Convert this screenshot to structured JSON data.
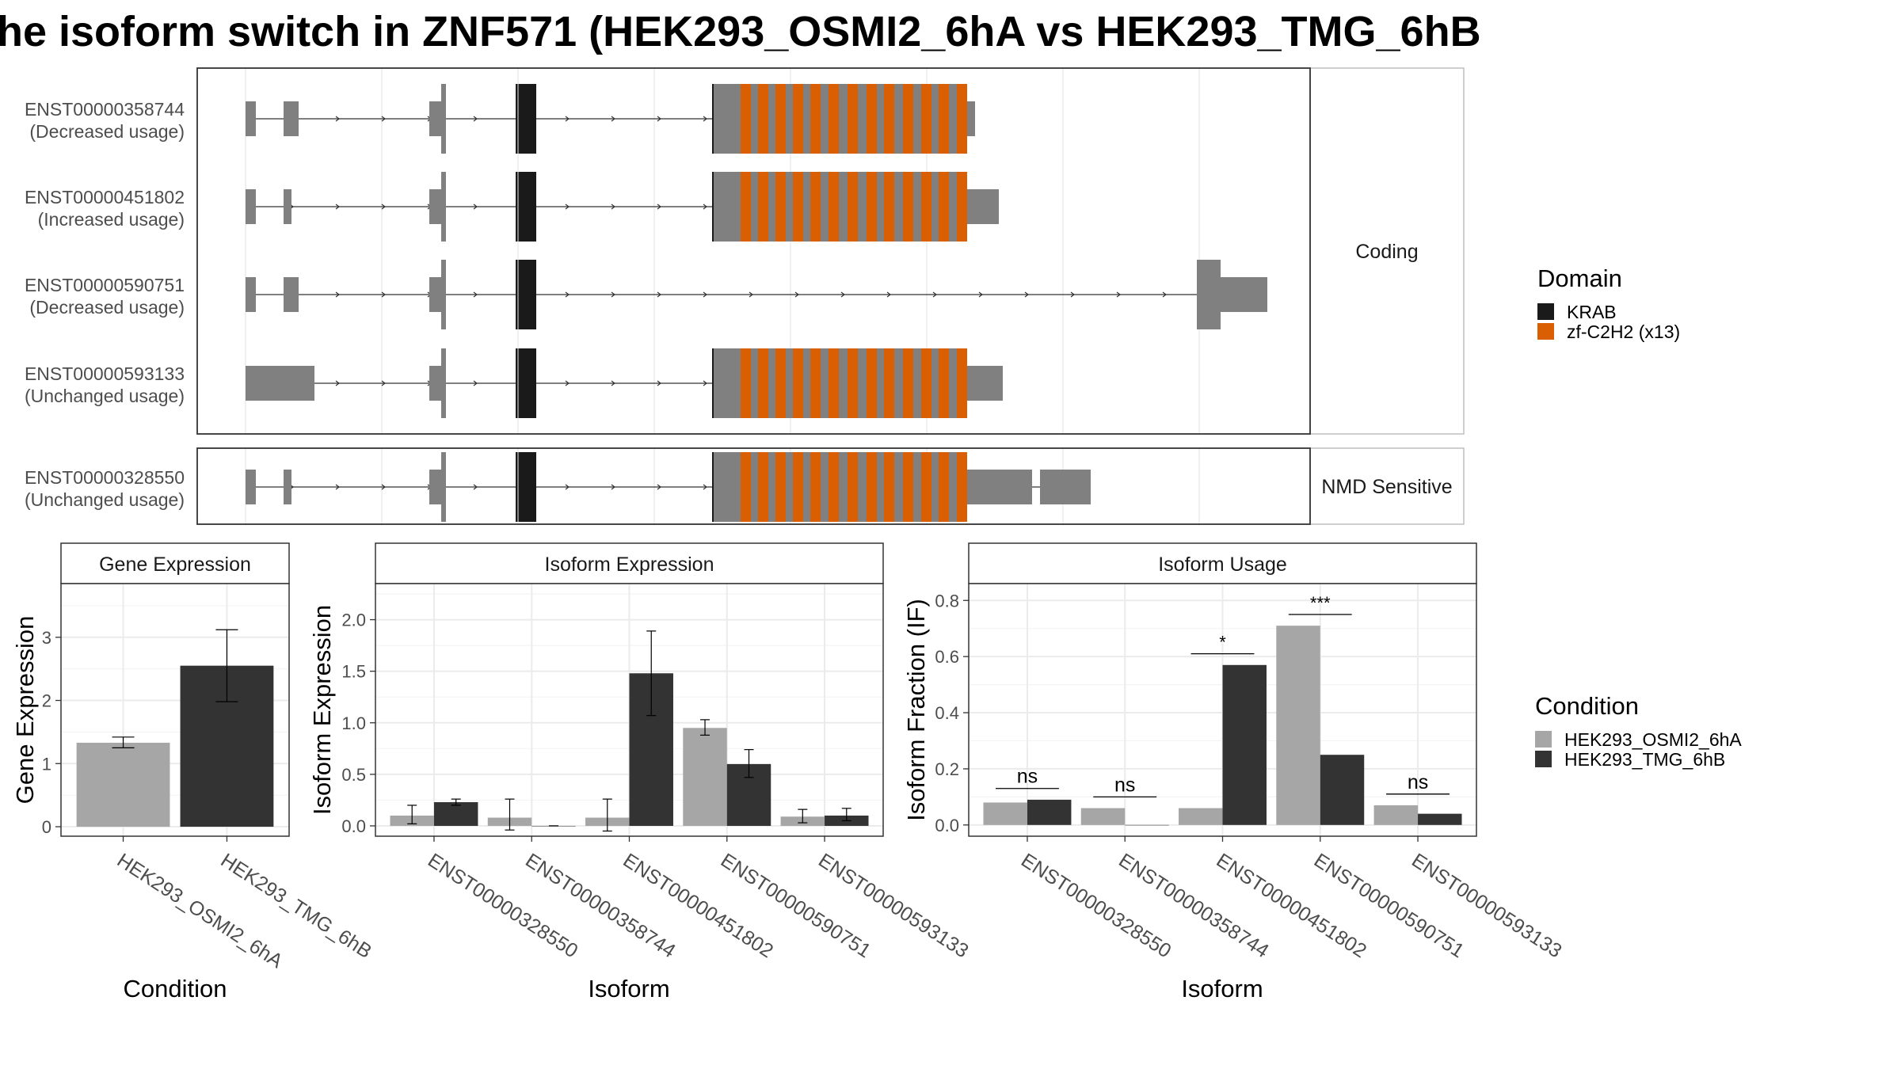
{
  "title": "he isoform switch in ZNF571 (HEK293_OSMI2_6hA vs HEK293_TMG_6hB",
  "colors": {
    "exon": "#808080",
    "krab": "#1a1a1a",
    "zf": "#d95f02",
    "condition_a": "#a6a6a6",
    "condition_b": "#333333",
    "panel_border": "#333333",
    "strip_border": "#bfbfbf",
    "grid": "#ebebeb"
  },
  "transcript_panel": {
    "facets": [
      "Coding",
      "NMD Sensitive"
    ],
    "transcripts": [
      {
        "id": "ENST00000358744",
        "usage": "(Decreased usage)",
        "facet": 0
      },
      {
        "id": "ENST00000451802",
        "usage": "(Increased usage)",
        "facet": 0
      },
      {
        "id": "ENST00000590751",
        "usage": "(Decreased usage)",
        "facet": 0
      },
      {
        "id": "ENST00000593133",
        "usage": "(Unchanged usage)",
        "facet": 0
      },
      {
        "id": "ENST00000328550",
        "usage": "(Unchanged usage)",
        "facet": 1
      }
    ]
  },
  "domain_legend": {
    "title": "Domain",
    "items": [
      {
        "label": "KRAB",
        "color": "#1a1a1a"
      },
      {
        "label": "zf-C2H2 (x13)",
        "color": "#d95f02"
      }
    ]
  },
  "condition_legend": {
    "title": "Condition",
    "items": [
      {
        "label": "HEK293_OSMI2_6hA",
        "color": "#a6a6a6"
      },
      {
        "label": "HEK293_TMG_6hB",
        "color": "#333333"
      }
    ]
  },
  "chart_data": [
    {
      "type": "bar",
      "title": "Gene Expression",
      "xlabel": "Condition",
      "ylabel": "Gene Expression",
      "categories": [
        "HEK293_OSMI2_6hA",
        "HEK293_TMG_6hB"
      ],
      "values": [
        1.33,
        2.55
      ],
      "error_low": [
        1.25,
        1.98
      ],
      "error_high": [
        1.42,
        3.12
      ],
      "ylim": [
        -0.15,
        3.85
      ],
      "yticks": [
        0,
        1,
        2,
        3
      ],
      "grid": true
    },
    {
      "type": "bar",
      "title": "Isoform Expression",
      "xlabel": "Isoform",
      "ylabel": "Isoform Expression",
      "categories": [
        "ENST00000328550",
        "ENST00000358744",
        "ENST00000451802",
        "ENST00000590751",
        "ENST00000593133"
      ],
      "series": [
        {
          "values": [
            0.1,
            0.08,
            0.08,
            0.95,
            0.09
          ],
          "error_low": [
            0.02,
            -0.04,
            -0.05,
            0.88,
            0.03
          ],
          "error_high": [
            0.2,
            0.26,
            0.26,
            1.03,
            0.16
          ]
        },
        {
          "values": [
            0.23,
            0.0,
            1.48,
            0.6,
            0.1
          ],
          "error_low": [
            0.2,
            0.0,
            1.07,
            0.47,
            0.05
          ],
          "error_high": [
            0.26,
            0.0,
            1.89,
            0.74,
            0.17
          ]
        }
      ],
      "ylim": [
        -0.1,
        2.35
      ],
      "yticks": [
        0.0,
        0.5,
        1.0,
        1.5,
        2.0
      ],
      "yticklabels": [
        "0.0",
        "0.5",
        "1.0",
        "1.5",
        "2.0"
      ],
      "grid": true
    },
    {
      "type": "bar",
      "title": "Isoform Usage",
      "xlabel": "Isoform",
      "ylabel": "Isoform Fraction (IF)",
      "categories": [
        "ENST00000328550",
        "ENST00000358744",
        "ENST00000451802",
        "ENST00000590751",
        "ENST00000593133"
      ],
      "series": [
        {
          "values": [
            0.08,
            0.06,
            0.06,
            0.71,
            0.07
          ]
        },
        {
          "values": [
            0.09,
            0.0,
            0.57,
            0.25,
            0.04
          ]
        }
      ],
      "significance": [
        "ns",
        "ns",
        "*",
        "***",
        "ns"
      ],
      "significance_y": [
        0.13,
        0.1,
        0.61,
        0.75,
        0.11
      ],
      "ylim": [
        -0.04,
        0.86
      ],
      "yticks": [
        0.0,
        0.2,
        0.4,
        0.6,
        0.8
      ],
      "yticklabels": [
        "0.0",
        "0.2",
        "0.4",
        "0.6",
        "0.8"
      ],
      "grid": true
    }
  ]
}
